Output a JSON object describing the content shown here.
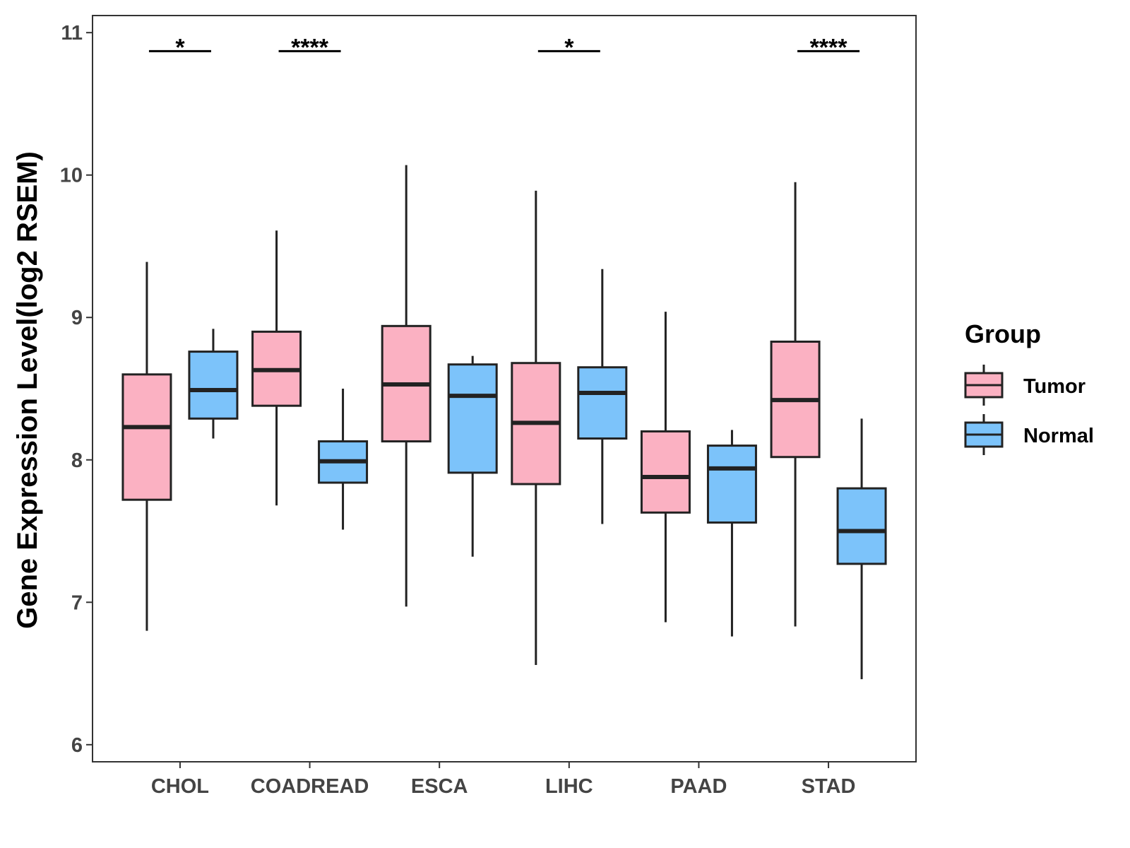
{
  "chart_data": {
    "type": "boxplot",
    "title": "",
    "xlabel": "",
    "ylabel": "Gene Expression Level(log2 RSEM)",
    "ylim": [
      5.88,
      11.12
    ],
    "yticks": [
      6,
      7,
      8,
      9,
      10,
      11
    ],
    "categories": [
      "CHOL",
      "COADREAD",
      "ESCA",
      "LIHC",
      "PAAD",
      "STAD"
    ],
    "legend": {
      "title": "Group",
      "position": "right"
    },
    "series": [
      {
        "name": "Tumor",
        "color": "#FBB1C2",
        "boxes": [
          {
            "min": 6.8,
            "q1": 7.72,
            "median": 8.23,
            "q3": 8.6,
            "max": 9.39
          },
          {
            "min": 7.68,
            "q1": 8.38,
            "median": 8.63,
            "q3": 8.9,
            "max": 9.61
          },
          {
            "min": 6.97,
            "q1": 8.13,
            "median": 8.53,
            "q3": 8.94,
            "max": 10.07
          },
          {
            "min": 6.56,
            "q1": 7.83,
            "median": 8.26,
            "q3": 8.68,
            "max": 9.89
          },
          {
            "min": 6.86,
            "q1": 7.63,
            "median": 7.88,
            "q3": 8.2,
            "max": 9.04
          },
          {
            "min": 6.83,
            "q1": 8.02,
            "median": 8.42,
            "q3": 8.83,
            "max": 9.95
          }
        ]
      },
      {
        "name": "Normal",
        "color": "#7CC3FA",
        "boxes": [
          {
            "min": 8.15,
            "q1": 8.29,
            "median": 8.49,
            "q3": 8.76,
            "max": 8.92
          },
          {
            "min": 7.51,
            "q1": 7.84,
            "median": 7.99,
            "q3": 8.13,
            "max": 8.5
          },
          {
            "min": 7.32,
            "q1": 7.91,
            "median": 8.45,
            "q3": 8.67,
            "max": 8.73
          },
          {
            "min": 7.55,
            "q1": 8.15,
            "median": 8.47,
            "q3": 8.65,
            "max": 9.34
          },
          {
            "min": 6.76,
            "q1": 7.56,
            "median": 7.94,
            "q3": 8.1,
            "max": 8.21
          },
          {
            "min": 6.46,
            "q1": 7.27,
            "median": 7.5,
            "q3": 7.8,
            "max": 8.29
          }
        ]
      }
    ],
    "significance": [
      {
        "category": "CHOL",
        "label": "*",
        "y": 10.87
      },
      {
        "category": "COADREAD",
        "label": "****",
        "y": 10.87
      },
      {
        "category": "LIHC",
        "label": "*",
        "y": 10.87
      },
      {
        "category": "STAD",
        "label": "****",
        "y": 10.87
      }
    ]
  }
}
